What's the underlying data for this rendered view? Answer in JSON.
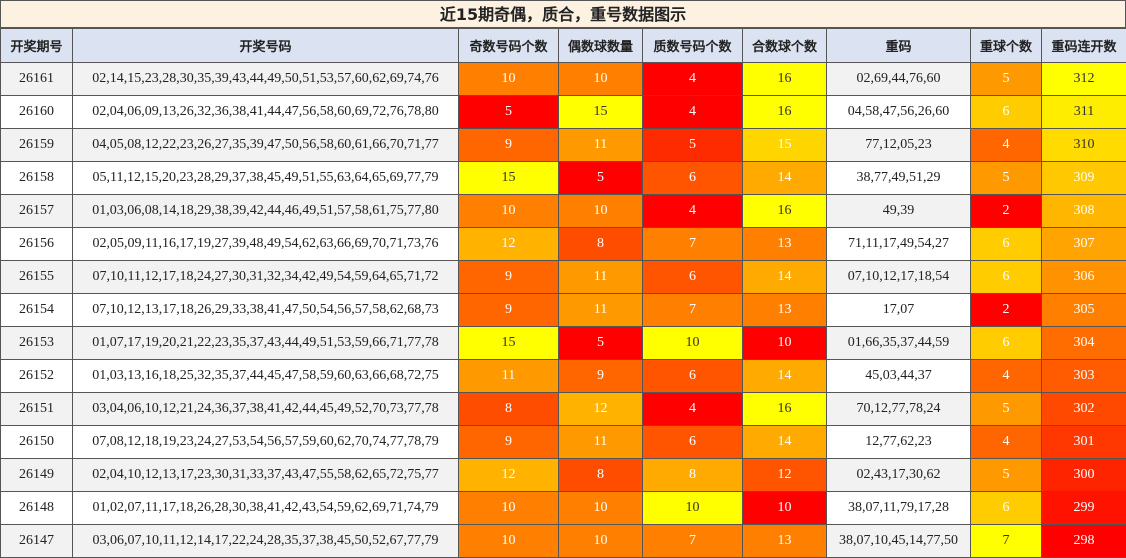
{
  "title": "近15期奇偶，质合，重号数据图示",
  "table": {
    "headers": [
      "开奖期号",
      "开奖号码",
      "奇数号码个数",
      "偶数球数量",
      "质数号码个数",
      "合数球个数",
      "重码",
      "重球个数",
      "重码连开数"
    ],
    "heatmap_columns": [
      2,
      3,
      4,
      5,
      7,
      8
    ],
    "heatmap_colors": [
      "#ff0000",
      "#ffff00"
    ],
    "rows": [
      [
        "26161",
        "02,14,15,23,28,30,35,39,43,44,49,50,51,53,57,60,62,69,74,76",
        10,
        10,
        4,
        16,
        "02,69,44,76,60",
        5,
        312
      ],
      [
        "26160",
        "02,04,06,09,13,26,32,36,38,41,44,47,56,58,60,69,72,76,78,80",
        5,
        15,
        4,
        16,
        "04,58,47,56,26,60",
        6,
        311
      ],
      [
        "26159",
        "04,05,08,12,22,23,26,27,35,39,47,50,56,58,60,61,66,70,71,77",
        9,
        11,
        5,
        15,
        "77,12,05,23",
        4,
        310
      ],
      [
        "26158",
        "05,11,12,15,20,23,28,29,37,38,45,49,51,55,63,64,65,69,77,79",
        15,
        5,
        6,
        14,
        "38,77,49,51,29",
        5,
        309
      ],
      [
        "26157",
        "01,03,06,08,14,18,29,38,39,42,44,46,49,51,57,58,61,75,77,80",
        10,
        10,
        4,
        16,
        "49,39",
        2,
        308
      ],
      [
        "26156",
        "02,05,09,11,16,17,19,27,39,48,49,54,62,63,66,69,70,71,73,76",
        12,
        8,
        7,
        13,
        "71,11,17,49,54,27",
        6,
        307
      ],
      [
        "26155",
        "07,10,11,12,17,18,24,27,30,31,32,34,42,49,54,59,64,65,71,72",
        9,
        11,
        6,
        14,
        "07,10,12,17,18,54",
        6,
        306
      ],
      [
        "26154",
        "07,10,12,13,17,18,26,29,33,38,41,47,50,54,56,57,58,62,68,73",
        9,
        11,
        7,
        13,
        "17,07",
        2,
        305
      ],
      [
        "26153",
        "01,07,17,19,20,21,22,23,35,37,43,44,49,51,53,59,66,71,77,78",
        15,
        5,
        10,
        10,
        "01,66,35,37,44,59",
        6,
        304
      ],
      [
        "26152",
        "01,03,13,16,18,25,32,35,37,44,45,47,58,59,60,63,66,68,72,75",
        11,
        9,
        6,
        14,
        "45,03,44,37",
        4,
        303
      ],
      [
        "26151",
        "03,04,06,10,12,21,24,36,37,38,41,42,44,45,49,52,70,73,77,78",
        8,
        12,
        4,
        16,
        "70,12,77,78,24",
        5,
        302
      ],
      [
        "26150",
        "07,08,12,18,19,23,24,27,53,54,56,57,59,60,62,70,74,77,78,79",
        9,
        11,
        6,
        14,
        "12,77,62,23",
        4,
        301
      ],
      [
        "26149",
        "02,04,10,12,13,17,23,30,31,33,37,43,47,55,58,62,65,72,75,77",
        12,
        8,
        8,
        12,
        "02,43,17,30,62",
        5,
        300
      ],
      [
        "26148",
        "01,02,07,11,17,18,26,28,30,38,41,42,43,54,59,62,69,71,74,79",
        10,
        10,
        10,
        10,
        "38,07,11,79,17,28",
        6,
        299
      ],
      [
        "26147",
        "03,06,07,10,11,12,14,17,22,24,28,35,37,38,45,50,52,67,77,79",
        10,
        10,
        7,
        13,
        "38,07,10,45,14,77,50",
        7,
        298
      ]
    ]
  }
}
